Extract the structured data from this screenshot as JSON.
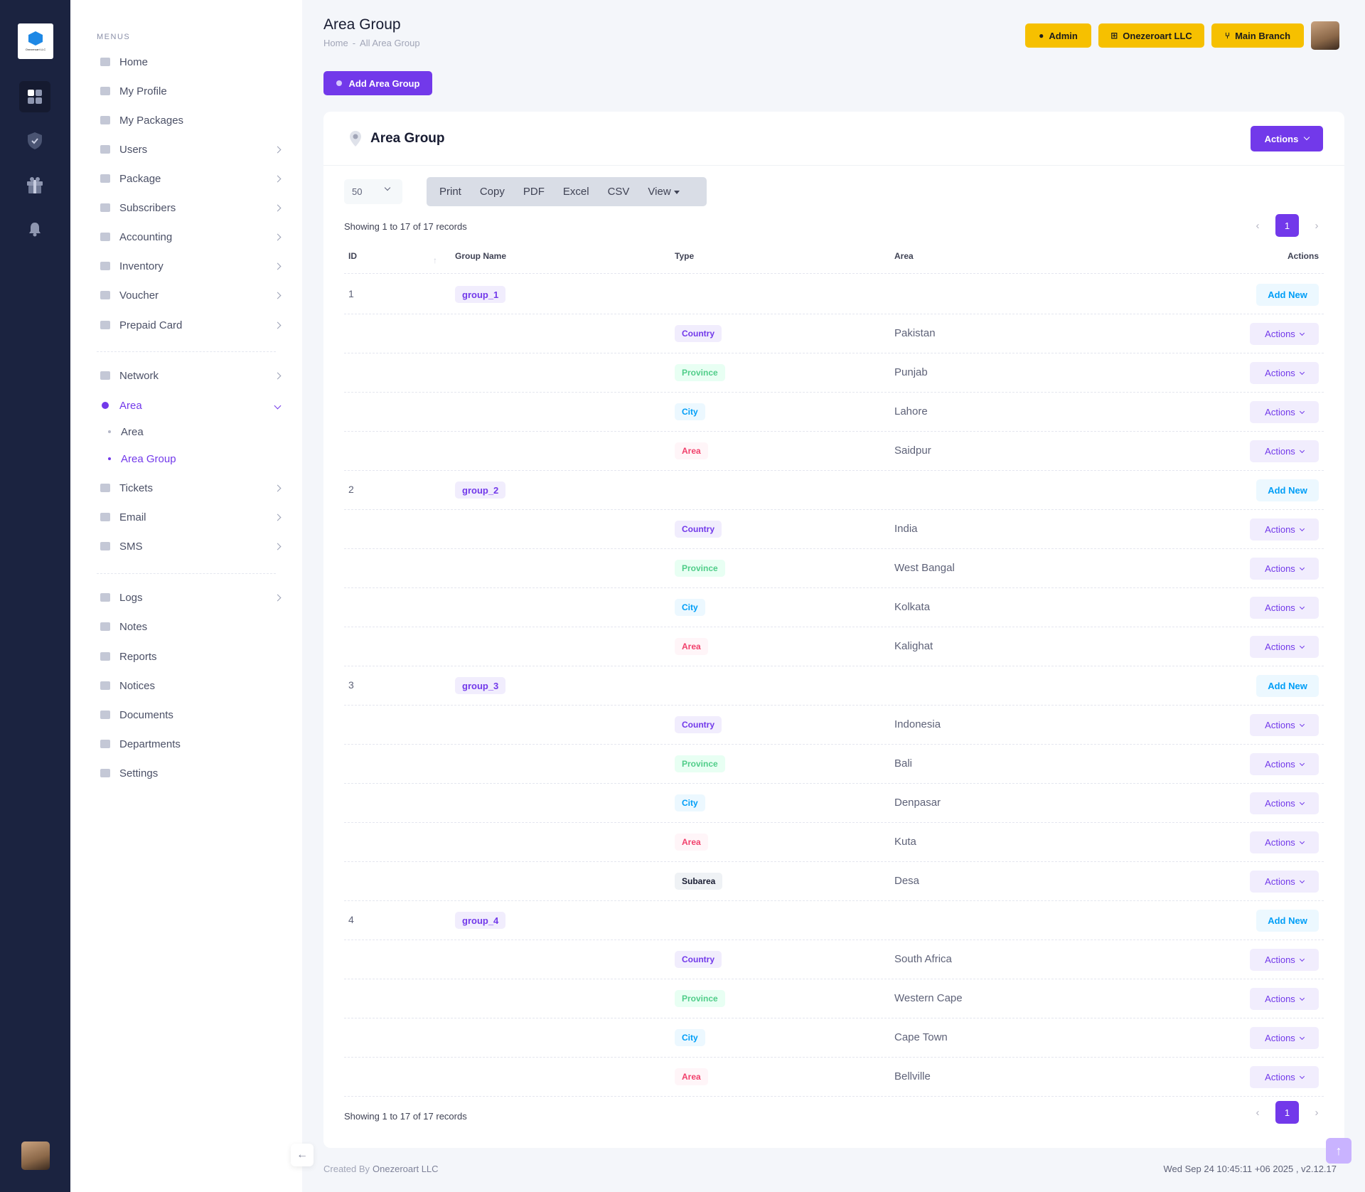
{
  "brand": {
    "logo_text": "Onezeroart LLC"
  },
  "rail": {
    "icons": [
      "dashboard-icon",
      "shield-check-icon",
      "gift-icon",
      "bell-icon"
    ]
  },
  "menu": {
    "heading": "MENUS",
    "items": [
      {
        "label": "Home",
        "icon": "home-icon"
      },
      {
        "label": "My Profile",
        "icon": "user-icon"
      },
      {
        "label": "My Packages",
        "icon": "package-icon"
      },
      {
        "label": "Users",
        "icon": "user-icon"
      },
      {
        "label": "Package",
        "icon": "package-icon"
      },
      {
        "label": "Subscribers",
        "icon": "users-icon"
      },
      {
        "label": "Accounting",
        "icon": "calculator-icon"
      },
      {
        "label": "Inventory",
        "icon": "bank-icon"
      },
      {
        "label": "Voucher",
        "icon": "ticket-icon"
      },
      {
        "label": "Prepaid Card",
        "icon": "card-icon"
      }
    ],
    "items2": [
      {
        "label": "Network",
        "icon": "antenna-icon"
      },
      {
        "label": "Area",
        "icon": "location-icon"
      }
    ],
    "area_sub": [
      {
        "label": "Area"
      },
      {
        "label": "Area Group"
      }
    ],
    "items3": [
      {
        "label": "Tickets",
        "icon": "ticket-icon"
      },
      {
        "label": "Email",
        "icon": "mail-icon"
      },
      {
        "label": "SMS",
        "icon": "message-icon"
      }
    ],
    "items4": [
      {
        "label": "Logs",
        "icon": "log-icon"
      },
      {
        "label": "Notes",
        "icon": "note-icon"
      },
      {
        "label": "Reports",
        "icon": "report-icon"
      },
      {
        "label": "Notices",
        "icon": "bell-icon"
      },
      {
        "label": "Documents",
        "icon": "document-icon"
      },
      {
        "label": "Departments",
        "icon": "building-icon"
      },
      {
        "label": "Settings",
        "icon": "gear-icon"
      }
    ]
  },
  "header": {
    "title": "Area Group",
    "breadcrumb": [
      "Home",
      "-",
      "All Area Group"
    ],
    "buttons": {
      "admin": "Admin",
      "company": "Onezeroart LLC",
      "branch": "Main Branch"
    }
  },
  "add_button": "Add Area Group",
  "card": {
    "title": "Area Group",
    "actions": "Actions",
    "page_length": "50",
    "export_buttons": [
      "Print",
      "Copy",
      "PDF",
      "Excel",
      "CSV",
      "View"
    ],
    "info": "Showing 1 to 17 of 17 records",
    "page": "1",
    "columns": {
      "id": "ID",
      "group": "Group Name",
      "type": "Type",
      "area": "Area",
      "actions": "Actions"
    },
    "add_new": "Add New",
    "row_actions": "Actions"
  },
  "type_colors": {
    "Country": {
      "bg": "#f1edfd",
      "fg": "#7239ea"
    },
    "Province": {
      "bg": "#e8fff3",
      "fg": "#50cd89"
    },
    "City": {
      "bg": "#ecf8ff",
      "fg": "#009ef7"
    },
    "Area": {
      "bg": "#fff5f8",
      "fg": "#f1416c"
    },
    "Subarea": {
      "bg": "#eff2f5",
      "fg": "#181c32"
    }
  },
  "groups": [
    {
      "id": "1",
      "name": "group_1",
      "rows": [
        {
          "type": "Country",
          "area": "Pakistan"
        },
        {
          "type": "Province",
          "area": "Punjab"
        },
        {
          "type": "City",
          "area": "Lahore"
        },
        {
          "type": "Area",
          "area": "Saidpur"
        }
      ]
    },
    {
      "id": "2",
      "name": "group_2",
      "rows": [
        {
          "type": "Country",
          "area": "India"
        },
        {
          "type": "Province",
          "area": "West Bangal"
        },
        {
          "type": "City",
          "area": "Kolkata"
        },
        {
          "type": "Area",
          "area": "Kalighat"
        }
      ]
    },
    {
      "id": "3",
      "name": "group_3",
      "rows": [
        {
          "type": "Country",
          "area": "Indonesia"
        },
        {
          "type": "Province",
          "area": "Bali"
        },
        {
          "type": "City",
          "area": "Denpasar"
        },
        {
          "type": "Area",
          "area": "Kuta"
        },
        {
          "type": "Subarea",
          "area": "Desa"
        }
      ]
    },
    {
      "id": "4",
      "name": "group_4",
      "rows": [
        {
          "type": "Country",
          "area": "South Africa"
        },
        {
          "type": "Province",
          "area": "Western Cape"
        },
        {
          "type": "City",
          "area": "Cape Town"
        },
        {
          "type": "Area",
          "area": "Bellville"
        }
      ]
    }
  ],
  "footer": {
    "created_by": "Created By",
    "company": "Onezeroart LLC",
    "datetime": "Wed Sep 24 10:45:11 +06 2025 ,",
    "version": "v2.12.17"
  }
}
